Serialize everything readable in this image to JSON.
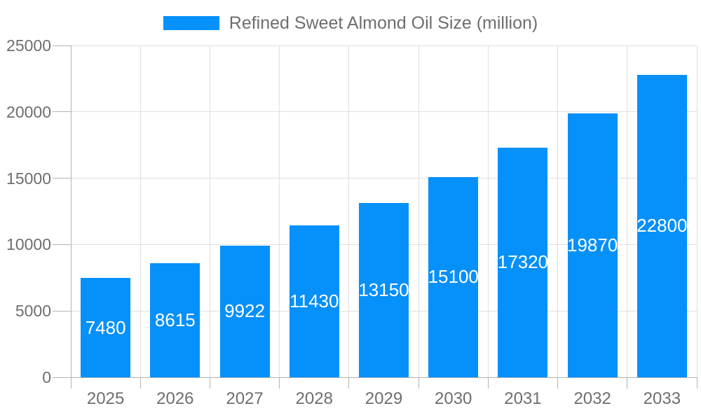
{
  "legend": {
    "label": "Refined Sweet Almond Oil Size (million)"
  },
  "chart_data": {
    "type": "bar",
    "title": "Refined Sweet Almond Oil Size (million)",
    "categories": [
      "2025",
      "2026",
      "2027",
      "2028",
      "2029",
      "2030",
      "2031",
      "2032",
      "2033"
    ],
    "values": [
      7480,
      8615,
      9922,
      11430,
      13150,
      15100,
      17320,
      19870,
      22800
    ],
    "xlabel": "",
    "ylabel": "",
    "ylim": [
      0,
      25000
    ],
    "yticks": [
      0,
      5000,
      10000,
      15000,
      20000,
      25000
    ],
    "grid": true,
    "legend_position": "top",
    "bar_color": "#0690fa",
    "value_label_color": "#ffffff",
    "axis_text_color": "#6e6e6e",
    "grid_color": "#e0e0e0",
    "axis_line_color": "#b3b3b3"
  }
}
